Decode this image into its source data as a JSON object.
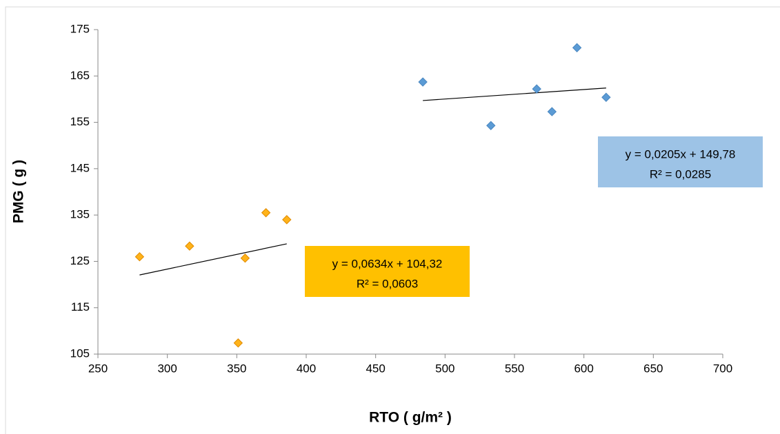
{
  "chart_data": {
    "type": "scatter",
    "x_label": "RTO ( g/m² )",
    "y_label": "PMG ( g )",
    "xlim": [
      250,
      700
    ],
    "xticks": [
      250,
      300,
      350,
      400,
      450,
      500,
      550,
      600,
      650,
      700
    ],
    "ylim": [
      105,
      175
    ],
    "yticks": [
      105,
      115,
      125,
      135,
      145,
      155,
      165,
      175
    ],
    "grid": false,
    "series": [
      {
        "color": "#5b9bd5",
        "stroke": "#4a87c0",
        "x": [
          484,
          533,
          566,
          577,
          595,
          616
        ],
        "values": [
          163.7,
          154.3,
          162.2,
          157.3,
          171.1,
          160.4
        ],
        "trendline": {
          "slope": 0.0205,
          "intercept": 149.78,
          "equation": "y = 0,0205x + 149,78",
          "r2_label": "R² = 0,0285",
          "box_color": "#9dc3e6"
        }
      },
      {
        "color": "#ffb31a",
        "stroke": "#e08a00",
        "x": [
          280,
          316,
          351,
          356,
          371,
          386
        ],
        "values": [
          126.0,
          128.3,
          107.4,
          125.7,
          135.5,
          134.0
        ],
        "trendline": {
          "slope": 0.0634,
          "intercept": 104.32,
          "equation": "y = 0,0634x + 104,32",
          "r2_label": "R² = 0,0603",
          "box_color": "#ffc000"
        }
      }
    ]
  }
}
